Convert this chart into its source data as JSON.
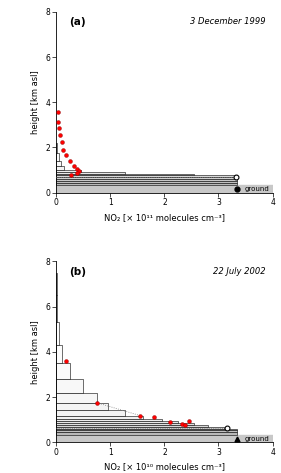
{
  "panel_a": {
    "title": "3 December 1999",
    "label": "(a)",
    "xlabel": "NO₂ [× 10¹¹ molecules cm⁻³]",
    "ylabel": "height [km asl]",
    "xlim": [
      0,
      4.0
    ],
    "ylim": [
      0,
      8.0
    ],
    "xticks": [
      0,
      1.0,
      2.0,
      3.0,
      4.0
    ],
    "yticks": [
      0,
      2.0,
      4.0,
      6.0,
      8.0
    ],
    "ground_top": 0.32,
    "ground_color": "#c8c8c8",
    "bars": [
      {
        "bottom": 0.32,
        "top": 0.44,
        "value": 3.35,
        "facecolor": "#b8b8b8"
      },
      {
        "bottom": 0.44,
        "top": 0.52,
        "value": 3.35,
        "facecolor": "#c0c0c0"
      },
      {
        "bottom": 0.52,
        "top": 0.6,
        "value": 3.35,
        "facecolor": "#c8c8c8"
      },
      {
        "bottom": 0.6,
        "top": 0.68,
        "value": 3.35,
        "facecolor": "#d0d0d0"
      },
      {
        "bottom": 0.68,
        "top": 0.76,
        "value": 3.35,
        "facecolor": "#d8d8d8"
      },
      {
        "bottom": 0.76,
        "top": 0.84,
        "value": 2.55,
        "facecolor": "#e0e0e0"
      },
      {
        "bottom": 0.84,
        "top": 0.92,
        "value": 1.28,
        "facecolor": "#e8e8e8"
      },
      {
        "bottom": 0.92,
        "top": 1.02,
        "value": 0.45,
        "facecolor": "#f0f0f0"
      },
      {
        "bottom": 1.02,
        "top": 1.18,
        "value": 0.15,
        "facecolor": "#f4f4f4"
      },
      {
        "bottom": 1.18,
        "top": 1.42,
        "value": 0.08,
        "facecolor": "#f8f8f8"
      },
      {
        "bottom": 1.42,
        "top": 1.75,
        "value": 0.05,
        "facecolor": "#fafafa"
      },
      {
        "bottom": 1.75,
        "top": 2.2,
        "value": 0.02,
        "facecolor": "#ffffff"
      }
    ],
    "red_dots": [
      [
        0.03,
        3.58
      ],
      [
        0.04,
        3.12
      ],
      [
        0.05,
        2.85
      ],
      [
        0.07,
        2.55
      ],
      [
        0.1,
        2.25
      ],
      [
        0.13,
        1.9
      ],
      [
        0.18,
        1.65
      ],
      [
        0.25,
        1.42
      ],
      [
        0.32,
        1.2
      ],
      [
        0.38,
        1.05
      ],
      [
        0.42,
        0.95
      ],
      [
        0.38,
        0.88
      ],
      [
        0.28,
        0.8
      ]
    ],
    "open_circle": [
      3.33,
      0.7
    ],
    "filled_circle": [
      3.35,
      0.16
    ],
    "dotted_line": true
  },
  "panel_b": {
    "title": "22 July 2002",
    "label": "(b)",
    "xlabel": "NO₂ [× 10¹⁰ molecules cm⁻³]",
    "ylabel": "height [km asl]",
    "xlim": [
      0,
      4.0
    ],
    "ylim": [
      0,
      8.0
    ],
    "xticks": [
      0,
      1.0,
      2.0,
      3.0,
      4.0
    ],
    "yticks": [
      0,
      2.0,
      4.0,
      6.0,
      8.0
    ],
    "ground_top": 0.32,
    "ground_color": "#c8c8c8",
    "bars": [
      {
        "bottom": 0.32,
        "top": 0.44,
        "value": 3.35,
        "facecolor": "#b8b8b8"
      },
      {
        "bottom": 0.44,
        "top": 0.52,
        "value": 3.35,
        "facecolor": "#c0c0c0"
      },
      {
        "bottom": 0.52,
        "top": 0.6,
        "value": 3.35,
        "facecolor": "#c8c8c8"
      },
      {
        "bottom": 0.6,
        "top": 0.68,
        "value": 3.1,
        "facecolor": "#d0d0d0"
      },
      {
        "bottom": 0.68,
        "top": 0.76,
        "value": 2.8,
        "facecolor": "#d8d8d8"
      },
      {
        "bottom": 0.76,
        "top": 0.84,
        "value": 2.55,
        "facecolor": "#e0e0e0"
      },
      {
        "bottom": 0.84,
        "top": 0.92,
        "value": 2.25,
        "facecolor": "#e8e8e8"
      },
      {
        "bottom": 0.92,
        "top": 1.02,
        "value": 1.95,
        "facecolor": "#eeeeee"
      },
      {
        "bottom": 1.02,
        "top": 1.18,
        "value": 1.6,
        "facecolor": "#f0f0f0"
      },
      {
        "bottom": 1.18,
        "top": 1.42,
        "value": 1.28,
        "facecolor": "#f2f2f2"
      },
      {
        "bottom": 1.42,
        "top": 1.75,
        "value": 0.95,
        "facecolor": "#f4f4f4"
      },
      {
        "bottom": 1.75,
        "top": 2.2,
        "value": 0.75,
        "facecolor": "#f6f6f6"
      },
      {
        "bottom": 2.2,
        "top": 2.8,
        "value": 0.5,
        "facecolor": "#f8f8f8"
      },
      {
        "bottom": 2.8,
        "top": 3.5,
        "value": 0.25,
        "facecolor": "#fafafa"
      },
      {
        "bottom": 3.5,
        "top": 4.3,
        "value": 0.1,
        "facecolor": "#fcfcfc"
      },
      {
        "bottom": 4.3,
        "top": 5.3,
        "value": 0.05,
        "facecolor": "#fdfdfd"
      },
      {
        "bottom": 5.3,
        "top": 6.5,
        "value": 0.02,
        "facecolor": "#ffffff"
      },
      {
        "bottom": 6.5,
        "top": 7.5,
        "value": 0.01,
        "facecolor": "#ffffff"
      }
    ],
    "red_dots": [
      [
        0.18,
        3.58
      ],
      [
        0.75,
        1.75
      ],
      [
        1.55,
        1.18
      ],
      [
        1.8,
        1.1
      ],
      [
        2.1,
        0.88
      ],
      [
        2.32,
        0.82
      ],
      [
        2.45,
        0.95
      ],
      [
        2.38,
        0.75
      ]
    ],
    "open_circle": [
      3.15,
      0.65
    ],
    "filled_triangle": [
      3.35,
      0.16
    ],
    "dotted_line_pts": [
      [
        0.75,
        1.75
      ],
      [
        1.55,
        1.18
      ]
    ],
    "dotted_line": true
  }
}
